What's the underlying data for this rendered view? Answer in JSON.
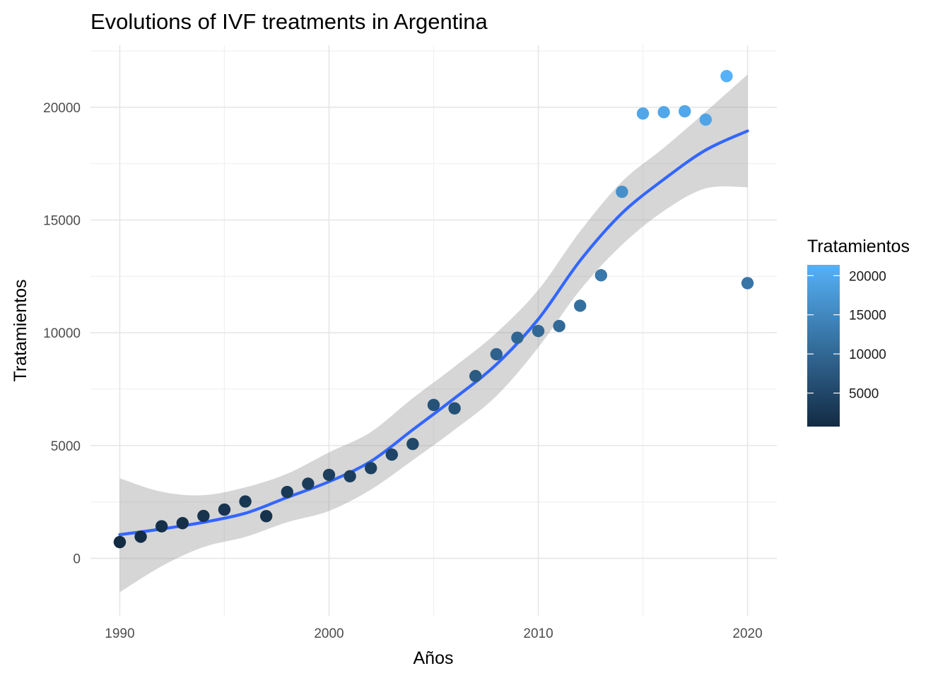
{
  "chart_data": {
    "type": "scatter",
    "title": "Evolutions of IVF treatments in Argentina",
    "xlabel": "Años",
    "ylabel": "Tratamientos",
    "xlim": [
      1988.6,
      2021.4
    ],
    "ylim": [
      -2550,
      22750
    ],
    "x_ticks": [
      1990,
      2000,
      2010,
      2020
    ],
    "y_ticks": [
      0,
      5000,
      10000,
      15000,
      20000
    ],
    "grid": true,
    "points": [
      {
        "x": 1990,
        "y": 720
      },
      {
        "x": 1991,
        "y": 960
      },
      {
        "x": 1992,
        "y": 1420
      },
      {
        "x": 1993,
        "y": 1560
      },
      {
        "x": 1994,
        "y": 1880
      },
      {
        "x": 1995,
        "y": 2160
      },
      {
        "x": 1996,
        "y": 2520
      },
      {
        "x": 1997,
        "y": 1870
      },
      {
        "x": 1998,
        "y": 2940
      },
      {
        "x": 1999,
        "y": 3310
      },
      {
        "x": 2000,
        "y": 3700
      },
      {
        "x": 2001,
        "y": 3640
      },
      {
        "x": 2002,
        "y": 4000
      },
      {
        "x": 2003,
        "y": 4600
      },
      {
        "x": 2004,
        "y": 5070
      },
      {
        "x": 2005,
        "y": 6800
      },
      {
        "x": 2006,
        "y": 6650
      },
      {
        "x": 2007,
        "y": 8080
      },
      {
        "x": 2008,
        "y": 9050
      },
      {
        "x": 2009,
        "y": 9780
      },
      {
        "x": 2010,
        "y": 10080
      },
      {
        "x": 2011,
        "y": 10300
      },
      {
        "x": 2012,
        "y": 11200
      },
      {
        "x": 2013,
        "y": 12550
      },
      {
        "x": 2014,
        "y": 16250
      },
      {
        "x": 2015,
        "y": 19720
      },
      {
        "x": 2016,
        "y": 19780
      },
      {
        "x": 2017,
        "y": 19820
      },
      {
        "x": 2018,
        "y": 19450
      },
      {
        "x": 2019,
        "y": 21380
      },
      {
        "x": 2020,
        "y": 12200
      }
    ],
    "smooth": {
      "color": "#3366ff",
      "band_color": "#999999",
      "fit": [
        {
          "x": 1990,
          "y": 1050,
          "ymin": -1500,
          "ymax": 3550
        },
        {
          "x": 1992,
          "y": 1300,
          "ymin": -350,
          "ymax": 2950
        },
        {
          "x": 1994,
          "y": 1600,
          "ymin": 500,
          "ymax": 2800
        },
        {
          "x": 1996,
          "y": 2000,
          "ymin": 950,
          "ymax": 3150
        },
        {
          "x": 1998,
          "y": 2700,
          "ymin": 1600,
          "ymax": 3750
        },
        {
          "x": 2000,
          "y": 3400,
          "ymin": 2100,
          "ymax": 4700
        },
        {
          "x": 2002,
          "y": 4300,
          "ymin": 3050,
          "ymax": 5600
        },
        {
          "x": 2004,
          "y": 5700,
          "ymin": 4350,
          "ymax": 7100
        },
        {
          "x": 2006,
          "y": 7100,
          "ymin": 5700,
          "ymax": 8500
        },
        {
          "x": 2008,
          "y": 8600,
          "ymin": 7200,
          "ymax": 10000
        },
        {
          "x": 2010,
          "y": 10600,
          "ymin": 9350,
          "ymax": 11900
        },
        {
          "x": 2012,
          "y": 13200,
          "ymin": 11900,
          "ymax": 14500
        },
        {
          "x": 2014,
          "y": 15300,
          "ymin": 13900,
          "ymax": 16700
        },
        {
          "x": 2016,
          "y": 16800,
          "ymin": 15400,
          "ymax": 18200
        },
        {
          "x": 2018,
          "y": 18100,
          "ymin": 16400,
          "ymax": 19800
        },
        {
          "x": 2020,
          "y": 18950,
          "ymin": 16450,
          "ymax": 21450
        }
      ]
    },
    "legend": {
      "title": "Tratamientos",
      "position": "right",
      "min": 720,
      "max": 21380,
      "ticks": [
        5000,
        10000,
        15000,
        20000
      ],
      "low_color": "#132b43",
      "high_color": "#56b1f7"
    }
  }
}
